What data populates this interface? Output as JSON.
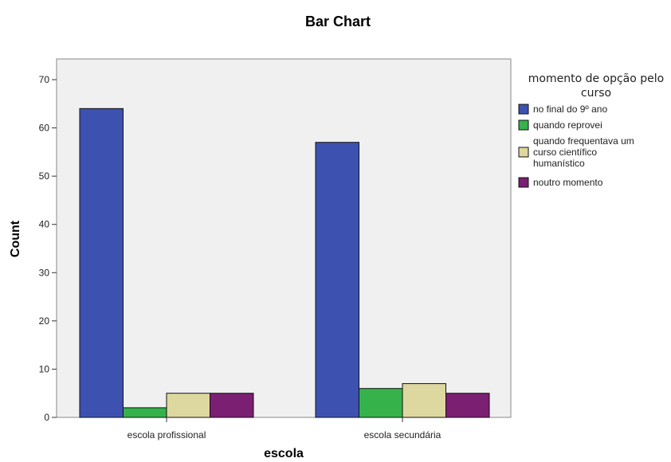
{
  "chart_data": {
    "type": "bar",
    "title": "Bar Chart",
    "xlabel": "escola",
    "ylabel": "Count",
    "ylim": [
      0,
      70
    ],
    "yticks": [
      0,
      10,
      20,
      30,
      40,
      50,
      60,
      70
    ],
    "categories": [
      "escola profissional",
      "escola secundária"
    ],
    "series": [
      {
        "name": "no final do 9º ano",
        "color": "#3d52b0",
        "values": [
          64,
          57
        ]
      },
      {
        "name": "quando reprovei",
        "color": "#35b34a",
        "values": [
          2,
          6
        ]
      },
      {
        "name": "quando frequentava um curso científico humanístico",
        "color": "#ddd8a0",
        "values": [
          5,
          7
        ]
      },
      {
        "name": "noutro momento",
        "color": "#7a1f72",
        "values": [
          5,
          5
        ]
      }
    ],
    "legend": {
      "title_lines": [
        "momento de opção pelo",
        "curso"
      ],
      "entries": [
        [
          "no final do 9º ano"
        ],
        [
          "quando reprovei"
        ],
        [
          "quando frequentava um",
          "curso científico",
          "humanístico"
        ],
        [
          "noutro momento"
        ]
      ],
      "placement": "right"
    },
    "grid": false,
    "plot_background": "#f0f0f0"
  }
}
